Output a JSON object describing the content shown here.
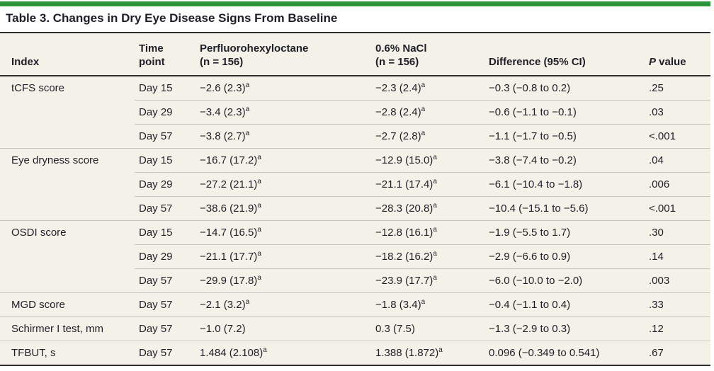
{
  "colors": {
    "accent_green": "#2b9639",
    "row_bg": "#f4f2e8",
    "rule_dark": "#2e2e2e",
    "rule_light": "#c8c6ba",
    "text_color": "#1e1e28"
  },
  "title": "Table 3. Changes in Dry Eye Disease Signs From Baseline",
  "header": {
    "index": "Index",
    "time_point_lines": [
      "Time",
      "point"
    ],
    "pfho_lines": [
      "Perfluorohexyloctane",
      "(n = 156)"
    ],
    "nacl_lines": [
      "0.6% NaCl",
      "(n = 156)"
    ],
    "difference": "Difference (95% CI)",
    "p_value": {
      "italic_part": "P",
      "rest_part": " value"
    }
  },
  "rows": [
    {
      "index": "tCFS score",
      "time_point": "Day 15",
      "pfho": "−2.6 (2.3)",
      "pfho_sup": "a",
      "nacl": "−2.3 (2.4)",
      "nacl_sup": "a",
      "difference": "−0.3 (−0.8 to 0.2)",
      "p_value": ".25",
      "group_start": true
    },
    {
      "index": "",
      "time_point": "Day 29",
      "pfho": "−3.4 (2.3)",
      "pfho_sup": "a",
      "nacl": "−2.8 (2.4)",
      "nacl_sup": "a",
      "difference": "−0.6 (−1.1 to −0.1)",
      "p_value": ".03",
      "group_start": false
    },
    {
      "index": "",
      "time_point": "Day 57",
      "pfho": "−3.8 (2.7)",
      "pfho_sup": "a",
      "nacl": "−2.7 (2.8)",
      "nacl_sup": "a",
      "difference": "−1.1 (−1.7 to −0.5)",
      "p_value": "<.001",
      "group_start": false
    },
    {
      "index": "Eye dryness score",
      "time_point": "Day 15",
      "pfho": "−16.7 (17.2)",
      "pfho_sup": "a",
      "nacl": "−12.9 (15.0)",
      "nacl_sup": "a",
      "difference": "−3.8 (−7.4 to −0.2)",
      "p_value": ".04",
      "group_start": true
    },
    {
      "index": "",
      "time_point": "Day 29",
      "pfho": "−27.2 (21.1)",
      "pfho_sup": "a",
      "nacl": "−21.1 (17.4)",
      "nacl_sup": "a",
      "difference": "−6.1 (−10.4 to −1.8)",
      "p_value": ".006",
      "group_start": false
    },
    {
      "index": "",
      "time_point": "Day 57",
      "pfho": "−38.6 (21.9)",
      "pfho_sup": "a",
      "nacl": "−28.3 (20.8)",
      "nacl_sup": "a",
      "difference": "−10.4 (−15.1 to −5.6)",
      "p_value": "<.001",
      "group_start": false
    },
    {
      "index": "OSDI score",
      "time_point": "Day 15",
      "pfho": "−14.7 (16.5)",
      "pfho_sup": "a",
      "nacl": "−12.8 (16.1)",
      "nacl_sup": "a",
      "difference": "−1.9 (−5.5 to 1.7)",
      "p_value": ".30",
      "group_start": true
    },
    {
      "index": "",
      "time_point": "Day 29",
      "pfho": "−21.1 (17.7)",
      "pfho_sup": "a",
      "nacl": "−18.2 (16.2)",
      "nacl_sup": "a",
      "difference": "−2.9 (−6.6 to 0.9)",
      "p_value": ".14",
      "group_start": false
    },
    {
      "index": "",
      "time_point": "Day 57",
      "pfho": "−29.9 (17.8)",
      "pfho_sup": "a",
      "nacl": "−23.9 (17.7)",
      "nacl_sup": "a",
      "difference": "−6.0 (−10.0 to −2.0)",
      "p_value": ".003",
      "group_start": false
    },
    {
      "index": "MGD score",
      "time_point": "Day 57",
      "pfho": "−2.1 (3.2)",
      "pfho_sup": "a",
      "nacl": "−1.8 (3.4)",
      "nacl_sup": "a",
      "difference": "−0.4 (−1.1 to 0.4)",
      "p_value": ".33",
      "group_start": true
    },
    {
      "index": "Schirmer I test, mm",
      "time_point": "Day 57",
      "pfho": "−1.0 (7.2)",
      "pfho_sup": "",
      "nacl": "0.3 (7.5)",
      "nacl_sup": "",
      "difference": "−1.3 (−2.9 to 0.3)",
      "p_value": ".12",
      "group_start": true
    },
    {
      "index": "TFBUT, s",
      "time_point": "Day 57",
      "pfho": "1.484 (2.108)",
      "pfho_sup": "a",
      "nacl": "1.388 (1.872)",
      "nacl_sup": "a",
      "difference": "0.096 (−0.349 to 0.541)",
      "p_value": ".67",
      "group_start": true
    }
  ]
}
